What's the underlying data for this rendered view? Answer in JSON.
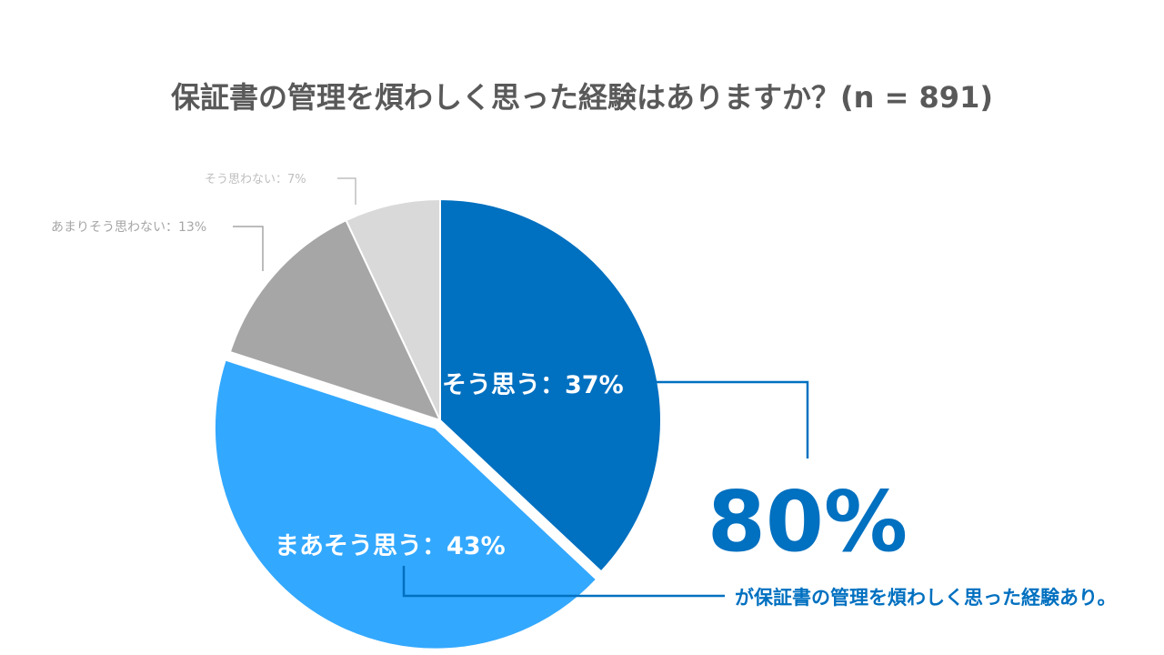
{
  "chart_data": {
    "type": "pie",
    "title": "保証書の管理を煩わしく思った経験はありますか？(n = 891)",
    "slices": [
      {
        "label": "そう思う",
        "value": 37,
        "display": "そう思う：37%",
        "color": "#0070C0"
      },
      {
        "label": "まあそう思う",
        "value": 43,
        "display": "まあそう思う：43%",
        "color": "#33A8FF"
      },
      {
        "label": "あまりそう思わない",
        "value": 13,
        "display": "あまりそう思わない：13%",
        "color": "#A6A6A6"
      },
      {
        "label": "そう思わない",
        "value": 7,
        "display": "そう思わない：7%",
        "color": "#D9D9D9"
      }
    ],
    "callout": {
      "value": "80%",
      "text": "が保証書の管理を煩わしく思った経験あり。",
      "color": "#0070C0"
    },
    "colors": {
      "title": "#595959",
      "light_label": "#BFBFBF",
      "mid_label": "#A6A6A6",
      "white": "#FFFFFF"
    }
  }
}
